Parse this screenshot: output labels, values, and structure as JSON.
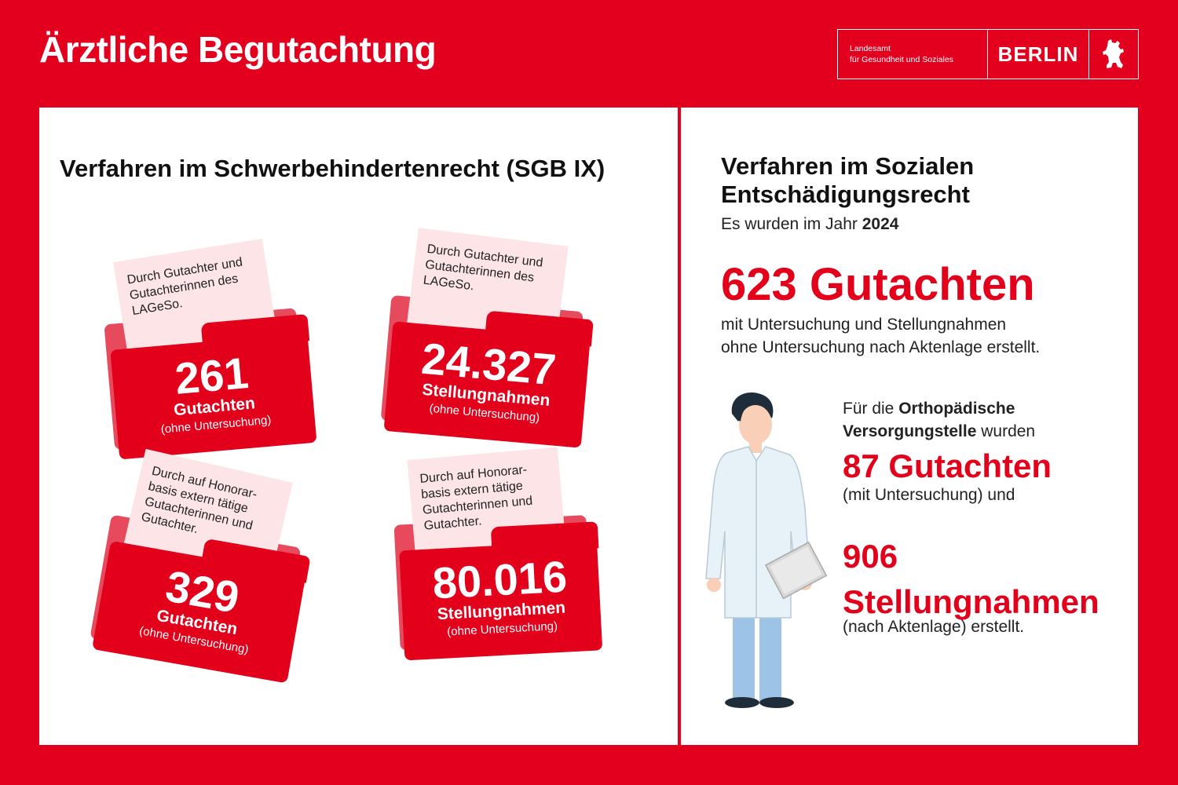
{
  "header": {
    "title": "Ärztliche Begutachtung",
    "logo_line1": "Landesamt",
    "logo_line2": "für Gesundheit und Soziales",
    "logo_city": "BERLIN"
  },
  "left": {
    "heading": "Verfahren im Schwerbehindertenrecht (SGB IX)",
    "folders": [
      {
        "paper": "Durch Gutachter und Gutachterinnen des LAGeSo.",
        "number": "261",
        "unit": "Gutachten",
        "sub": "(ohne Untersuchung)"
      },
      {
        "paper": "Durch Gutachter und Gutachterinnen des LAGeSo.",
        "number": "24.327",
        "unit": "Stellungnahmen",
        "sub": "(ohne Untersuchung)"
      },
      {
        "paper": "Durch auf Honorar-basis extern tätige Gutachterinnen und Gutachter.",
        "number": "329",
        "unit": "Gutachten",
        "sub": "(ohne Untersuchung)"
      },
      {
        "paper": "Durch auf Honorar-basis extern tätige Gutachterinnen und Gutachter.",
        "number": "80.016",
        "unit": "Stellungnahmen",
        "sub": "(ohne Untersuchung)"
      }
    ]
  },
  "right": {
    "heading_line1": "Verfahren im Sozialen",
    "heading_line2": "Entschädigungsrecht",
    "intro": "Es wurden im Jahr ",
    "year": "2024",
    "big_number": "623 Gutachten",
    "desc_line1": "mit Untersuchung und Stellungnahmen",
    "desc_line2": "ohne Untersuchung nach Aktenlage erstellt.",
    "ortho_pre": "Für die ",
    "ortho_bold1": "Orthopädische",
    "ortho_bold2": "Versorgungstelle",
    "ortho_post": " wurden",
    "stat1_number": "87 Gutachten",
    "stat1_text": "(mit Untersuchung) und",
    "stat2_number": "906",
    "stat2_unit": "Stellungnahmen",
    "stat2_text": "(nach Aktenlage) erstellt."
  },
  "colors": {
    "brand_red": "#e3001f",
    "folder_back": "#e74a5c",
    "paper": "#fce4e7",
    "coat": "#e6f1f8",
    "trousers": "#9dc3e6"
  },
  "icons": [
    "berlin-bear-icon",
    "doctor-illustration",
    "folder-icon"
  ]
}
